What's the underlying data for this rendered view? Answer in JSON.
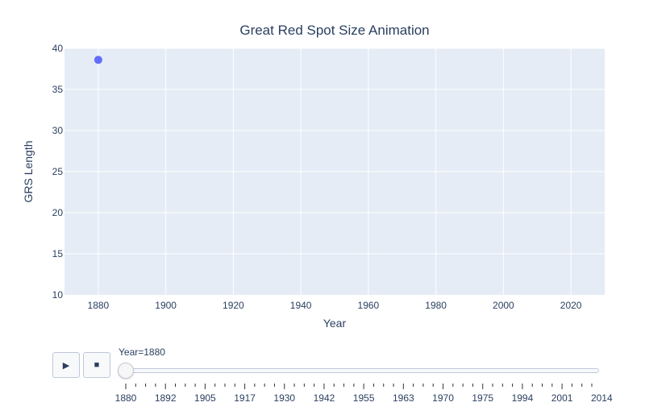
{
  "chart_data": {
    "type": "scatter",
    "title": "Great Red Spot Size Animation",
    "xlabel": "Year",
    "ylabel": "GRS Length",
    "xlim": [
      1870,
      2030
    ],
    "ylim": [
      10,
      40
    ],
    "x_ticks": [
      1880,
      1900,
      1920,
      1940,
      1960,
      1980,
      2000,
      2020
    ],
    "y_ticks": [
      10,
      15,
      20,
      25,
      30,
      35,
      40
    ],
    "grid": true,
    "series": [
      {
        "x": [
          1880
        ],
        "y": [
          38.6
        ]
      }
    ],
    "colors": {
      "marker": "#636efa",
      "plot_bg": "#e5ecf6",
      "grid": "#ffffff",
      "text": "#2a3f5f"
    }
  },
  "animation": {
    "play_icon": "▶",
    "stop_icon": "■",
    "current_label": "Year=1880",
    "current_value": 1880,
    "frame_count": 48,
    "major_labels": [
      "1880",
      "1892",
      "1905",
      "1917",
      "1930",
      "1942",
      "1955",
      "1963",
      "1970",
      "1975",
      "1994",
      "2001",
      "2014"
    ]
  }
}
